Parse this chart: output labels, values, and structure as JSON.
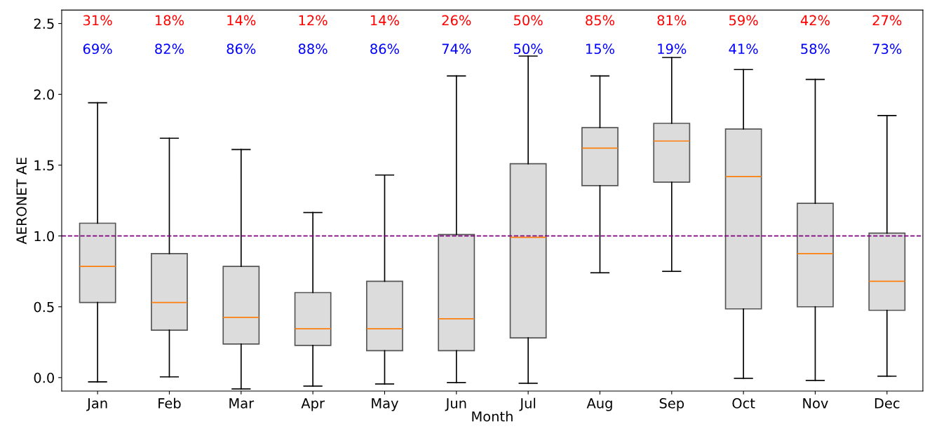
{
  "chart_data": {
    "type": "box",
    "xlabel": "Month",
    "ylabel": "AERONET AE",
    "categories": [
      "Jan",
      "Feb",
      "Mar",
      "Apr",
      "May",
      "Jun",
      "Jul",
      "Aug",
      "Sep",
      "Oct",
      "Nov",
      "Dec"
    ],
    "boxes": [
      {
        "low": -0.03,
        "q1": 0.53,
        "median": 0.785,
        "q3": 1.09,
        "high": 1.94
      },
      {
        "low": 0.005,
        "q1": 0.335,
        "median": 0.53,
        "q3": 0.875,
        "high": 1.69
      },
      {
        "low": -0.08,
        "q1": 0.237,
        "median": 0.425,
        "q3": 0.785,
        "high": 1.61
      },
      {
        "low": -0.06,
        "q1": 0.227,
        "median": 0.345,
        "q3": 0.6,
        "high": 1.165
      },
      {
        "low": -0.045,
        "q1": 0.19,
        "median": 0.345,
        "q3": 0.68,
        "high": 1.43
      },
      {
        "low": -0.035,
        "q1": 0.19,
        "median": 0.415,
        "q3": 1.01,
        "high": 2.13
      },
      {
        "low": -0.04,
        "q1": 0.28,
        "median": 0.99,
        "q3": 1.51,
        "high": 2.27
      },
      {
        "low": 0.74,
        "q1": 1.355,
        "median": 1.62,
        "q3": 1.765,
        "high": 2.13
      },
      {
        "low": 0.75,
        "q1": 1.38,
        "median": 1.67,
        "q3": 1.795,
        "high": 2.26
      },
      {
        "low": -0.005,
        "q1": 0.485,
        "median": 1.42,
        "q3": 1.755,
        "high": 2.175
      },
      {
        "low": -0.02,
        "q1": 0.5,
        "median": 0.875,
        "q3": 1.23,
        "high": 2.105
      },
      {
        "low": 0.01,
        "q1": 0.475,
        "median": 0.68,
        "q3": 1.02,
        "high": 1.85
      }
    ],
    "color": "#dcdcdc",
    "ylim": [
      -0.095,
      2.595
    ],
    "yticks": [
      {
        "value": 0,
        "label": "0.0"
      },
      {
        "value": 0.5,
        "label": "0.5"
      },
      {
        "value": 1,
        "label": "1.0"
      },
      {
        "value": 1.5,
        "label": "1.5"
      },
      {
        "value": 2,
        "label": "2.0"
      },
      {
        "value": 2.5,
        "label": "2.5"
      }
    ],
    "ref_lines": [
      {
        "axis": "y",
        "value": 1.0,
        "color": "#800080",
        "line_style": "dashed"
      }
    ],
    "grid": false,
    "legend": false,
    "annotations": [
      "31%",
      "18%",
      "14%",
      "12%",
      "14%",
      "26%",
      "50%",
      "85%",
      "81%",
      "59%",
      "42%",
      "27%",
      "69%",
      "82%",
      "86%",
      "88%",
      "86%",
      "74%",
      "50%",
      "15%",
      "19%",
      "41%",
      "58%",
      "73%"
    ]
  }
}
